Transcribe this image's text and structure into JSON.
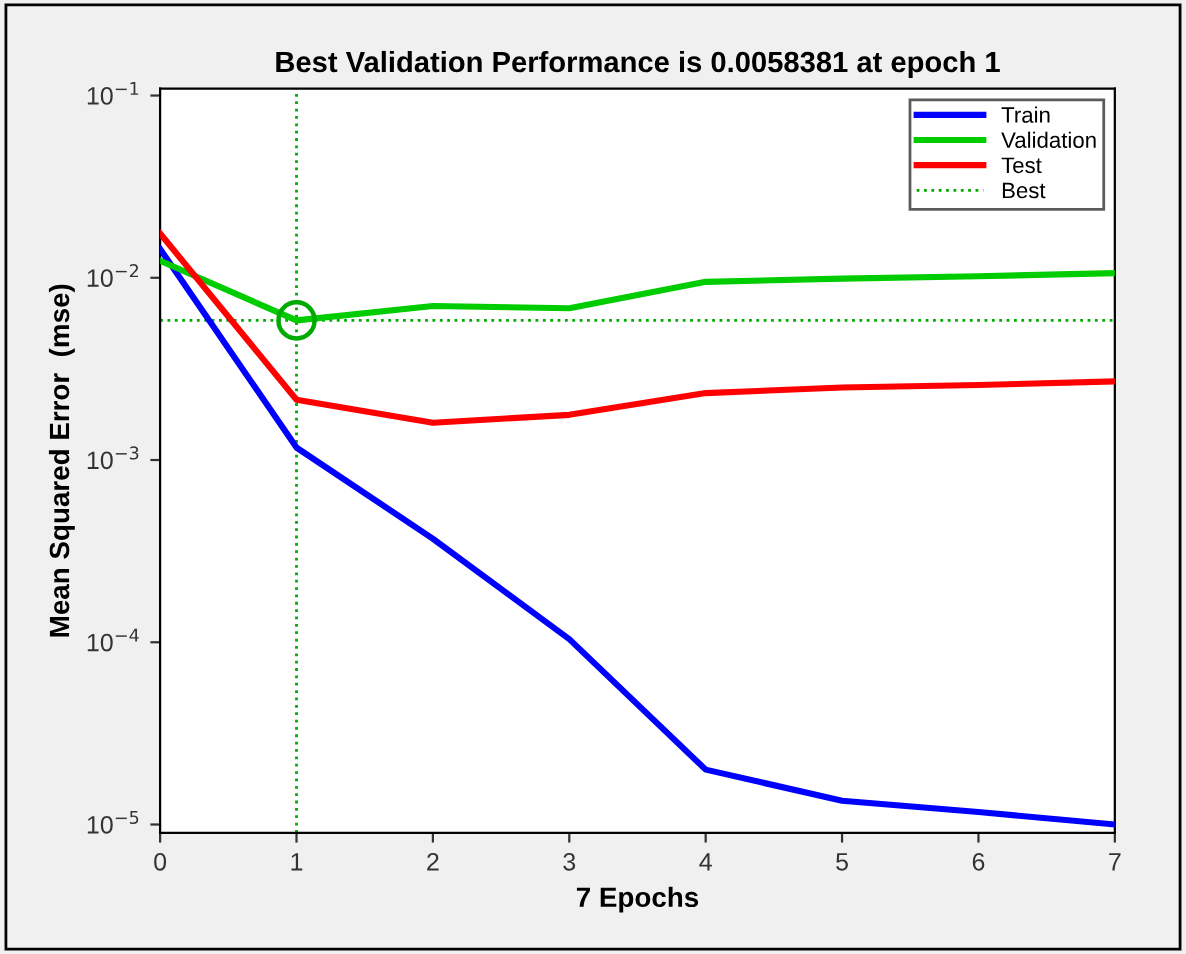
{
  "chart_data": {
    "type": "line",
    "title": "Best Validation Performance is 0.0058381 at epoch 1",
    "xlabel": "7 Epochs",
    "ylabel": "Mean Squared Error  (mse)",
    "x": [
      0,
      1,
      2,
      3,
      4,
      5,
      6,
      7
    ],
    "series": [
      {
        "name": "Train",
        "color": "#0000ff",
        "values": [
          0.0144,
          0.00117,
          0.00037,
          0.000104,
          2e-05,
          1.35e-05,
          1.17e-05,
          1e-05
        ]
      },
      {
        "name": "Validation",
        "color": "#00cc00",
        "values": [
          0.0124,
          0.0058381,
          0.007,
          0.0068,
          0.0095,
          0.0099,
          0.0102,
          0.0106
        ]
      },
      {
        "name": "Test",
        "color": "#ff0000",
        "values": [
          0.0175,
          0.00214,
          0.0016,
          0.00177,
          0.00233,
          0.0025,
          0.00258,
          0.0027
        ]
      },
      {
        "name": "Best",
        "type": "scatter",
        "color": "#00aa00",
        "marker": "circle",
        "x": [
          1
        ],
        "values": [
          0.0058381
        ]
      }
    ],
    "ref_lines": [
      {
        "axis": "x",
        "value": 1,
        "color": "#00aa00",
        "line_style": "dotted"
      },
      {
        "axis": "y",
        "value": 0.0058381,
        "color": "#00aa00",
        "line_style": "dotted"
      }
    ],
    "log": "y",
    "xlim": [
      0,
      7
    ],
    "xticks": [
      0,
      1,
      2,
      3,
      4,
      5,
      6,
      7
    ],
    "ylim": [
      9e-06,
      0.109
    ],
    "yticks": [
      {
        "value": 1e-05,
        "label": "10$^{−5}$"
      },
      {
        "value": 0.0001,
        "label": "10$^{−4}$"
      },
      {
        "value": 0.001,
        "label": "10$^{−3}$"
      },
      {
        "value": 0.01,
        "label": "10$^{−2}$"
      },
      {
        "value": 0.1,
        "label": "10$^{−1}$"
      }
    ],
    "grid": false,
    "legend": "top right",
    "line_style": "solid",
    "marker": "none"
  }
}
